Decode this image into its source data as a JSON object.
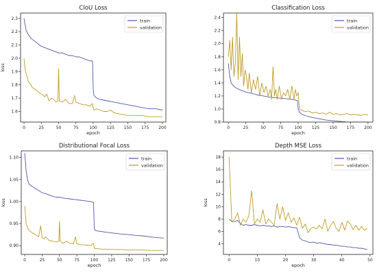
{
  "colors": {
    "train": "#4c58a8",
    "validation": "#bf9a22"
  },
  "chart_data": [
    {
      "type": "line",
      "title": "CIoU Loss",
      "xlabel": "epoch",
      "ylabel": "loss",
      "xlim": [
        -5,
        205
      ],
      "ylim": [
        1.52,
        2.34
      ],
      "xticks": [
        0,
        25,
        50,
        75,
        100,
        125,
        150,
        175,
        200
      ],
      "yticks": [
        1.6,
        1.7,
        1.8,
        1.9,
        2.0,
        2.1,
        2.2,
        2.3
      ],
      "ytick_labels": [
        "1.6",
        "1.7",
        "1.8",
        "1.9",
        "2.0",
        "2.1",
        "2.2",
        "2.3"
      ],
      "legend": "top-right",
      "series": [
        {
          "name": "train",
          "color": "#4c58a8",
          "x": [
            0,
            3,
            6,
            10,
            15,
            20,
            25,
            30,
            35,
            40,
            45,
            50,
            55,
            60,
            65,
            70,
            75,
            80,
            85,
            90,
            95,
            99,
            100,
            101,
            105,
            110,
            120,
            130,
            140,
            150,
            160,
            170,
            180,
            190,
            200
          ],
          "y": [
            2.3,
            2.21,
            2.18,
            2.15,
            2.13,
            2.11,
            2.09,
            2.08,
            2.07,
            2.06,
            2.05,
            2.04,
            2.04,
            2.03,
            2.02,
            2.02,
            2.01,
            2.01,
            2.0,
            1.99,
            1.98,
            1.98,
            1.77,
            1.72,
            1.7,
            1.69,
            1.68,
            1.67,
            1.66,
            1.65,
            1.64,
            1.63,
            1.62,
            1.62,
            1.61
          ]
        },
        {
          "name": "validation",
          "color": "#bf9a22",
          "x": [
            0,
            2,
            4,
            6,
            8,
            10,
            12,
            15,
            18,
            20,
            22,
            25,
            28,
            30,
            33,
            36,
            40,
            43,
            46,
            49,
            50,
            51,
            55,
            60,
            65,
            70,
            73,
            75,
            80,
            85,
            90,
            95,
            99,
            100,
            101,
            105,
            110,
            115,
            120,
            125,
            130,
            140,
            150,
            160,
            170,
            180,
            190,
            200
          ],
          "y": [
            2.0,
            1.9,
            1.87,
            1.83,
            1.81,
            1.8,
            1.78,
            1.77,
            1.76,
            1.75,
            1.74,
            1.73,
            1.72,
            1.71,
            1.73,
            1.68,
            1.7,
            1.69,
            1.67,
            1.68,
            1.92,
            1.68,
            1.67,
            1.69,
            1.66,
            1.66,
            1.72,
            1.67,
            1.66,
            1.65,
            1.65,
            1.64,
            1.66,
            1.63,
            1.61,
            1.62,
            1.61,
            1.6,
            1.6,
            1.61,
            1.59,
            1.58,
            1.57,
            1.57,
            1.57,
            1.56,
            1.56,
            1.56
          ]
        }
      ]
    },
    {
      "type": "line",
      "title": "Classification Loss",
      "xlabel": "epoch",
      "ylabel": "",
      "xlim": [
        -7,
        207
      ],
      "ylim": [
        0.8,
        2.47
      ],
      "xticks": [
        0,
        25,
        50,
        75,
        100,
        125,
        150,
        175,
        200
      ],
      "yticks": [
        0.8,
        1.0,
        1.2,
        1.4,
        1.6,
        1.8,
        2.0,
        2.2,
        2.4
      ],
      "ytick_labels": [
        "0.8",
        "1.0",
        "1.2",
        "1.4",
        "1.6",
        "1.8",
        "2.0",
        "2.2",
        "2.4"
      ],
      "legend": "top-right",
      "series": [
        {
          "name": "train",
          "color": "#4c58a8",
          "x": [
            0,
            2,
            4,
            6,
            10,
            15,
            20,
            25,
            30,
            40,
            50,
            60,
            70,
            80,
            90,
            95,
            99,
            100,
            102,
            105,
            110,
            120,
            130,
            140,
            150,
            160,
            170,
            180,
            190,
            200
          ],
          "y": [
            1.7,
            1.5,
            1.4,
            1.37,
            1.33,
            1.3,
            1.28,
            1.26,
            1.25,
            1.22,
            1.2,
            1.18,
            1.17,
            1.16,
            1.15,
            1.14,
            1.13,
            1.0,
            0.95,
            0.92,
            0.9,
            0.87,
            0.85,
            0.83,
            0.82,
            0.81,
            0.8,
            0.8,
            0.8,
            0.8
          ]
        },
        {
          "name": "validation",
          "color": "#bf9a22",
          "x": [
            0,
            2,
            4,
            6,
            8,
            10,
            12,
            14,
            16,
            18,
            20,
            22,
            24,
            26,
            28,
            30,
            33,
            36,
            39,
            42,
            45,
            48,
            51,
            54,
            57,
            60,
            62,
            64,
            66,
            68,
            70,
            73,
            76,
            79,
            82,
            85,
            88,
            91,
            94,
            96,
            98,
            100,
            102,
            105,
            110,
            115,
            120,
            125,
            130,
            135,
            140,
            145,
            150,
            155,
            160,
            165,
            170,
            175,
            180,
            185,
            190,
            195,
            200
          ],
          "y": [
            1.8,
            2.05,
            1.6,
            2.1,
            1.5,
            1.7,
            2.47,
            1.45,
            2.1,
            1.5,
            1.85,
            1.35,
            1.6,
            1.5,
            1.3,
            1.55,
            1.25,
            1.45,
            1.3,
            1.5,
            1.2,
            1.4,
            1.25,
            1.35,
            1.2,
            1.3,
            1.15,
            1.65,
            1.2,
            1.3,
            1.15,
            1.35,
            1.15,
            1.25,
            1.2,
            1.3,
            1.15,
            1.35,
            1.15,
            1.3,
            1.2,
            1.25,
            1.0,
            0.98,
            0.96,
            0.97,
            0.94,
            0.95,
            0.93,
            0.94,
            0.92,
            0.95,
            0.92,
            0.93,
            0.91,
            0.92,
            0.93,
            0.91,
            0.92,
            0.91,
            0.9,
            0.92,
            0.91
          ]
        }
      ]
    },
    {
      "type": "line",
      "title": "Distributional Focal Loss",
      "xlabel": "epoch",
      "ylabel": "loss",
      "xlim": [
        -5,
        205
      ],
      "ylim": [
        0.88,
        1.115
      ],
      "xticks": [
        0,
        25,
        50,
        75,
        100,
        125,
        150,
        175,
        200
      ],
      "yticks": [
        0.9,
        0.95,
        1.0,
        1.05,
        1.1
      ],
      "ytick_labels": [
        "0.90",
        "0.95",
        "1.00",
        "1.05",
        "1.10"
      ],
      "legend": "top-right",
      "series": [
        {
          "name": "train",
          "color": "#4c58a8",
          "x": [
            0,
            2,
            4,
            6,
            10,
            15,
            20,
            25,
            30,
            35,
            40,
            45,
            50,
            55,
            60,
            65,
            70,
            75,
            80,
            85,
            90,
            95,
            99,
            100,
            101,
            105,
            110,
            120,
            130,
            140,
            150,
            160,
            170,
            180,
            190,
            200
          ],
          "y": [
            1.11,
            1.07,
            1.05,
            1.04,
            1.035,
            1.03,
            1.025,
            1.02,
            1.018,
            1.015,
            1.012,
            1.01,
            1.01,
            1.008,
            1.007,
            1.006,
            1.005,
            1.004,
            1.003,
            1.002,
            1.001,
            1.0,
            0.998,
            0.94,
            0.935,
            0.933,
            0.932,
            0.93,
            0.928,
            0.926,
            0.925,
            0.923,
            0.922,
            0.92,
            0.918,
            0.917
          ]
        },
        {
          "name": "validation",
          "color": "#bf9a22",
          "x": [
            0,
            2,
            4,
            6,
            10,
            15,
            20,
            23,
            25,
            28,
            30,
            35,
            40,
            45,
            49,
            50,
            51,
            55,
            60,
            65,
            70,
            73,
            75,
            80,
            85,
            90,
            95,
            99,
            100,
            101,
            105,
            110,
            120,
            130,
            140,
            150,
            160,
            170,
            180,
            190,
            200
          ],
          "y": [
            0.99,
            0.95,
            0.94,
            0.935,
            0.93,
            0.925,
            0.92,
            0.945,
            0.918,
            0.915,
            0.92,
            0.912,
            0.91,
            0.908,
            0.91,
            0.955,
            0.91,
            0.905,
            0.91,
            0.905,
            0.904,
            0.92,
            0.904,
            0.902,
            0.902,
            0.901,
            0.9,
            0.905,
            0.895,
            0.893,
            0.893,
            0.892,
            0.892,
            0.891,
            0.891,
            0.89,
            0.89,
            0.89,
            0.889,
            0.889,
            0.889
          ]
        }
      ]
    },
    {
      "type": "line",
      "title": "Depth MSE Loss",
      "xlabel": "epoch",
      "ylabel": "loss",
      "xlim": [
        -2,
        51
      ],
      "ylim": [
        2.3,
        19.0
      ],
      "xticks": [
        0,
        10,
        20,
        30,
        40,
        50
      ],
      "yticks": [
        4,
        6,
        8,
        10,
        12,
        14,
        16,
        18
      ],
      "ytick_labels": [
        "4",
        "6",
        "8",
        "10",
        "12",
        "14",
        "16",
        "18"
      ],
      "legend": "top-right",
      "series": [
        {
          "name": "train",
          "color": "#4c58a8",
          "x": [
            0,
            1,
            2,
            3,
            4,
            5,
            6,
            7,
            8,
            9,
            10,
            11,
            12,
            13,
            14,
            15,
            16,
            17,
            18,
            19,
            20,
            21,
            22,
            23,
            24,
            25,
            26,
            27,
            28,
            29,
            30,
            31,
            32,
            33,
            34,
            35,
            36,
            37,
            38,
            39,
            40,
            41,
            42,
            43,
            44,
            45,
            46,
            47,
            48,
            49
          ],
          "y": [
            8.0,
            7.6,
            7.6,
            7.8,
            7.3,
            7.0,
            7.1,
            7.0,
            7.0,
            7.1,
            7.0,
            6.9,
            7.0,
            6.9,
            6.9,
            6.8,
            6.9,
            6.7,
            6.8,
            6.8,
            6.7,
            6.8,
            6.7,
            6.6,
            6.6,
            5.0,
            4.6,
            4.5,
            4.3,
            4.2,
            4.3,
            4.1,
            4.2,
            4.1,
            4.0,
            3.9,
            3.9,
            3.8,
            3.8,
            3.7,
            3.6,
            3.6,
            3.5,
            3.5,
            3.4,
            3.4,
            3.3,
            3.3,
            3.2,
            3.1
          ]
        },
        {
          "name": "validation",
          "color": "#bf9a22",
          "x": [
            0,
            1,
            2,
            3,
            4,
            5,
            6,
            7,
            8,
            9,
            10,
            11,
            12,
            13,
            14,
            15,
            16,
            17,
            18,
            19,
            20,
            21,
            22,
            23,
            24,
            25,
            26,
            27,
            28,
            29,
            30,
            31,
            32,
            33,
            34,
            35,
            36,
            37,
            38,
            39,
            40,
            41,
            42,
            43,
            44,
            45,
            46,
            47,
            48,
            49
          ],
          "y": [
            18.0,
            7.5,
            8.0,
            9.0,
            7.0,
            8.0,
            7.5,
            8.5,
            12.6,
            7.2,
            8.0,
            7.5,
            9.5,
            7.2,
            8.0,
            7.5,
            7.0,
            10.5,
            8.0,
            10.0,
            7.8,
            9.0,
            7.5,
            8.2,
            7.0,
            8.3,
            6.5,
            7.2,
            5.8,
            6.5,
            6.7,
            6.4,
            7.0,
            6.4,
            8.0,
            6.0,
            7.0,
            7.6,
            6.5,
            6.0,
            7.5,
            6.2,
            7.7,
            7.2,
            6.3,
            7.0,
            6.2,
            6.8,
            6.2,
            6.5
          ]
        }
      ]
    }
  ]
}
